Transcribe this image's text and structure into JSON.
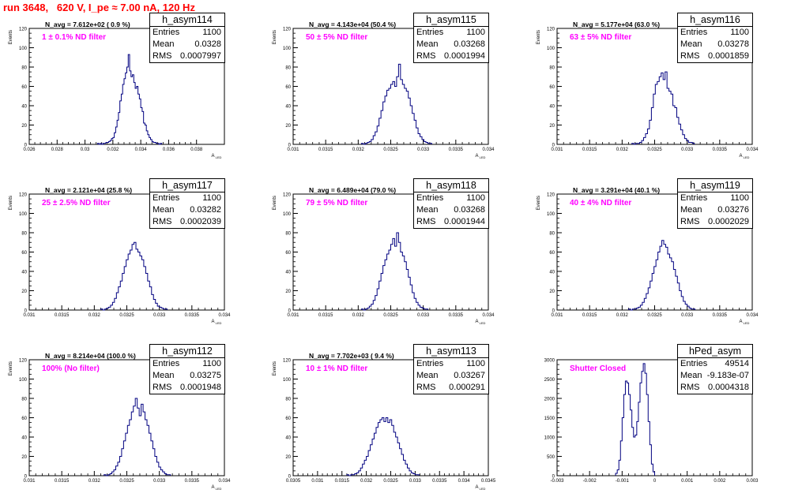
{
  "page": {
    "title": "run 3648,   620 V, I_pe ≈ 7.00 nA, 120 Hz"
  },
  "style": {
    "line_color": "#000080",
    "title_color": "#ff0000",
    "filter_color": "#ff00ff"
  },
  "chart_data": [
    {
      "type": "bar",
      "name": "h_asym114",
      "navg": "N_avg = 7.612e+02 ( 0.9 %)",
      "filter": "1 ± 0.1% ND filter",
      "stats": {
        "entries_label": "Entries",
        "entries": "1100",
        "mean_label": "Mean",
        "mean": "0.0328",
        "rms_label": "RMS",
        "rms": "0.0007997"
      },
      "ylabel": "Events",
      "xlabel": "A_LED",
      "xlim": [
        0.026,
        0.04
      ],
      "ylim": [
        0,
        120
      ],
      "xticks": [
        {
          "v": 0.026,
          "l": "0.026"
        },
        {
          "v": 0.028,
          "l": "0.028"
        },
        {
          "v": 0.03,
          "l": "0.03"
        },
        {
          "v": 0.032,
          "l": "0.032"
        },
        {
          "v": 0.034,
          "l": "0.034"
        },
        {
          "v": 0.036,
          "l": "0.036"
        },
        {
          "v": 0.038,
          "l": "0.038"
        }
      ],
      "yticks": [
        {
          "v": 0,
          "l": "0"
        },
        {
          "v": 20,
          "l": "20"
        },
        {
          "v": 40,
          "l": "40"
        },
        {
          "v": 60,
          "l": "60"
        },
        {
          "v": 80,
          "l": "80"
        },
        {
          "v": 100,
          "l": "100"
        },
        {
          "v": 120,
          "l": "120"
        }
      ],
      "bins": {
        "x0": 0.0309,
        "w": 0.0001,
        "counts": [
          1,
          0,
          1,
          0,
          1,
          1,
          2,
          2,
          3,
          4,
          6,
          7,
          12,
          18,
          25,
          33,
          45,
          52,
          62,
          68,
          74,
          80,
          93,
          76,
          70,
          72,
          64,
          58,
          60,
          52,
          47,
          38,
          34,
          22,
          20,
          14,
          10,
          7,
          5,
          3,
          2,
          2,
          1,
          1,
          0,
          1
        ]
      }
    },
    {
      "type": "bar",
      "name": "h_asym115",
      "navg": "N_avg = 4.143e+04 (50.4 %)",
      "filter": "50 ± 5% ND filter",
      "stats": {
        "entries_label": "Entries",
        "entries": "1100",
        "mean_label": "Mean",
        "mean": "0.03268",
        "rms_label": "RMS",
        "rms": "0.0001994"
      },
      "ylabel": "Events",
      "xlabel": "A_LED",
      "xlim": [
        0.031,
        0.034
      ],
      "ylim": [
        0,
        120
      ],
      "xticks": [
        {
          "v": 0.031,
          "l": "0.031"
        },
        {
          "v": 0.0315,
          "l": "0.0315"
        },
        {
          "v": 0.032,
          "l": "0.032"
        },
        {
          "v": 0.0325,
          "l": "0.0325"
        },
        {
          "v": 0.033,
          "l": "0.033"
        },
        {
          "v": 0.0335,
          "l": "0.0335"
        },
        {
          "v": 0.034,
          "l": "0.034"
        }
      ],
      "yticks": [
        {
          "v": 0,
          "l": "0"
        },
        {
          "v": 20,
          "l": "20"
        },
        {
          "v": 40,
          "l": "40"
        },
        {
          "v": 60,
          "l": "60"
        },
        {
          "v": 80,
          "l": "80"
        },
        {
          "v": 100,
          "l": "100"
        },
        {
          "v": 120,
          "l": "120"
        }
      ],
      "bins": {
        "x0": 0.03205,
        "w": 3e-05,
        "counts": [
          1,
          0,
          1,
          2,
          3,
          5,
          9,
          13,
          19,
          27,
          35,
          44,
          50,
          56,
          58,
          62,
          65,
          60,
          70,
          83,
          67,
          62,
          58,
          55,
          48,
          40,
          32,
          25,
          17,
          11,
          8,
          5,
          3,
          2,
          1,
          1
        ]
      }
    },
    {
      "type": "bar",
      "name": "h_asym116",
      "navg": "N_avg = 5.177e+04 (63.0 %)",
      "filter": "63 ± 5% ND filter",
      "stats": {
        "entries_label": "Entries",
        "entries": "1100",
        "mean_label": "Mean",
        "mean": "0.03278",
        "rms_label": "RMS",
        "rms": "0.0001859"
      },
      "ylabel": "Events",
      "xlabel": "A_LED",
      "xlim": [
        0.031,
        0.034
      ],
      "ylim": [
        0,
        120
      ],
      "xticks": [
        {
          "v": 0.031,
          "l": "0.031"
        },
        {
          "v": 0.0315,
          "l": "0.0315"
        },
        {
          "v": 0.032,
          "l": "0.032"
        },
        {
          "v": 0.0325,
          "l": "0.0325"
        },
        {
          "v": 0.033,
          "l": "0.033"
        },
        {
          "v": 0.0335,
          "l": "0.0335"
        },
        {
          "v": 0.034,
          "l": "0.034"
        }
      ],
      "yticks": [
        {
          "v": 0,
          "l": "0"
        },
        {
          "v": 20,
          "l": "20"
        },
        {
          "v": 40,
          "l": "40"
        },
        {
          "v": 60,
          "l": "60"
        },
        {
          "v": 80,
          "l": "80"
        },
        {
          "v": 100,
          "l": "100"
        },
        {
          "v": 120,
          "l": "120"
        }
      ],
      "bins": {
        "x0": 0.03215,
        "w": 3e-05,
        "counts": [
          1,
          0,
          1,
          1,
          2,
          4,
          7,
          11,
          16,
          25,
          38,
          52,
          62,
          65,
          70,
          74,
          67,
          75,
          58,
          55,
          52,
          40,
          38,
          28,
          21,
          15,
          10,
          6,
          4,
          2,
          2,
          1
        ]
      }
    },
    {
      "type": "bar",
      "name": "h_asym117",
      "navg": "N_avg = 2.121e+04 (25.8 %)",
      "filter": "25 ± 2.5% ND filter",
      "stats": {
        "entries_label": "Entries",
        "entries": "1100",
        "mean_label": "Mean",
        "mean": "0.03282",
        "rms_label": "RMS",
        "rms": "0.0002039"
      },
      "ylabel": "Events",
      "xlabel": "A_LED",
      "xlim": [
        0.031,
        0.034
      ],
      "ylim": [
        0,
        120
      ],
      "xticks": [
        {
          "v": 0.031,
          "l": "0.031"
        },
        {
          "v": 0.0315,
          "l": "0.0315"
        },
        {
          "v": 0.032,
          "l": "0.032"
        },
        {
          "v": 0.0325,
          "l": "0.0325"
        },
        {
          "v": 0.033,
          "l": "0.033"
        },
        {
          "v": 0.0335,
          "l": "0.0335"
        },
        {
          "v": 0.034,
          "l": "0.034"
        }
      ],
      "yticks": [
        {
          "v": 0,
          "l": "0"
        },
        {
          "v": 20,
          "l": "20"
        },
        {
          "v": 40,
          "l": "40"
        },
        {
          "v": 60,
          "l": "60"
        },
        {
          "v": 80,
          "l": "80"
        },
        {
          "v": 100,
          "l": "100"
        },
        {
          "v": 120,
          "l": "120"
        }
      ],
      "bins": {
        "x0": 0.0321,
        "w": 3e-05,
        "counts": [
          1,
          0,
          1,
          2,
          3,
          5,
          8,
          12,
          18,
          24,
          30,
          38,
          45,
          52,
          58,
          62,
          68,
          70,
          63,
          60,
          56,
          52,
          45,
          38,
          30,
          24,
          16,
          11,
          7,
          4,
          3,
          2,
          1,
          1
        ]
      }
    },
    {
      "type": "bar",
      "name": "h_asym118",
      "navg": "N_avg = 6.489e+04 (79.0 %)",
      "filter": "79 ± 5% ND filter",
      "stats": {
        "entries_label": "Entries",
        "entries": "1100",
        "mean_label": "Mean",
        "mean": "0.03268",
        "rms_label": "RMS",
        "rms": "0.0001944"
      },
      "ylabel": "Events",
      "xlabel": "A_LED",
      "xlim": [
        0.031,
        0.034
      ],
      "ylim": [
        0,
        120
      ],
      "xticks": [
        {
          "v": 0.031,
          "l": "0.031"
        },
        {
          "v": 0.0315,
          "l": "0.0315"
        },
        {
          "v": 0.032,
          "l": "0.032"
        },
        {
          "v": 0.0325,
          "l": "0.0325"
        },
        {
          "v": 0.033,
          "l": "0.033"
        },
        {
          "v": 0.0335,
          "l": "0.0335"
        },
        {
          "v": 0.034,
          "l": "0.034"
        }
      ],
      "yticks": [
        {
          "v": 0,
          "l": "0"
        },
        {
          "v": 20,
          "l": "20"
        },
        {
          "v": 40,
          "l": "40"
        },
        {
          "v": 60,
          "l": "60"
        },
        {
          "v": 80,
          "l": "80"
        },
        {
          "v": 100,
          "l": "100"
        },
        {
          "v": 120,
          "l": "120"
        }
      ],
      "bins": {
        "x0": 0.03205,
        "w": 3e-05,
        "counts": [
          1,
          0,
          1,
          2,
          4,
          6,
          10,
          15,
          22,
          30,
          38,
          46,
          52,
          58,
          62,
          68,
          74,
          66,
          80,
          70,
          60,
          56,
          50,
          42,
          34,
          26,
          18,
          12,
          8,
          5,
          3,
          2,
          1,
          1
        ]
      }
    },
    {
      "type": "bar",
      "name": "h_asym119",
      "navg": "N_avg = 3.291e+04 (40.1 %)",
      "filter": "40 ± 4% ND filter",
      "stats": {
        "entries_label": "Entries",
        "entries": "1100",
        "mean_label": "Mean",
        "mean": "0.03276",
        "rms_label": "RMS",
        "rms": "0.0002029"
      },
      "ylabel": "Events",
      "xlabel": "A_LED",
      "xlim": [
        0.031,
        0.034
      ],
      "ylim": [
        0,
        120
      ],
      "xticks": [
        {
          "v": 0.031,
          "l": "0.031"
        },
        {
          "v": 0.0315,
          "l": "0.0315"
        },
        {
          "v": 0.032,
          "l": "0.032"
        },
        {
          "v": 0.0325,
          "l": "0.0325"
        },
        {
          "v": 0.033,
          "l": "0.033"
        },
        {
          "v": 0.0335,
          "l": "0.0335"
        },
        {
          "v": 0.034,
          "l": "0.034"
        }
      ],
      "yticks": [
        {
          "v": 0,
          "l": "0"
        },
        {
          "v": 20,
          "l": "20"
        },
        {
          "v": 40,
          "l": "40"
        },
        {
          "v": 60,
          "l": "60"
        },
        {
          "v": 80,
          "l": "80"
        },
        {
          "v": 100,
          "l": "100"
        },
        {
          "v": 120,
          "l": "120"
        }
      ],
      "bins": {
        "x0": 0.0321,
        "w": 3e-05,
        "counts": [
          1,
          0,
          1,
          1,
          2,
          3,
          5,
          8,
          12,
          17,
          23,
          30,
          38,
          45,
          52,
          60,
          66,
          72,
          68,
          65,
          58,
          54,
          50,
          42,
          35,
          28,
          20,
          14,
          9,
          6,
          4,
          2,
          1,
          1
        ]
      }
    },
    {
      "type": "bar",
      "name": "h_asym112",
      "navg": "N_avg = 8.214e+04 (100.0 %)",
      "filter": "100% (No filter)",
      "stats": {
        "entries_label": "Entries",
        "entries": "1100",
        "mean_label": "Mean",
        "mean": "0.03275",
        "rms_label": "RMS",
        "rms": "0.0001948"
      },
      "ylabel": "Events",
      "xlabel": "A_LED",
      "xlim": [
        0.031,
        0.034
      ],
      "ylim": [
        0,
        120
      ],
      "xticks": [
        {
          "v": 0.031,
          "l": "0.031"
        },
        {
          "v": 0.0315,
          "l": "0.0315"
        },
        {
          "v": 0.032,
          "l": "0.032"
        },
        {
          "v": 0.0325,
          "l": "0.0325"
        },
        {
          "v": 0.033,
          "l": "0.033"
        },
        {
          "v": 0.0335,
          "l": "0.0335"
        },
        {
          "v": 0.034,
          "l": "0.034"
        }
      ],
      "yticks": [
        {
          "v": 0,
          "l": "0"
        },
        {
          "v": 20,
          "l": "20"
        },
        {
          "v": 40,
          "l": "40"
        },
        {
          "v": 60,
          "l": "60"
        },
        {
          "v": 80,
          "l": "80"
        },
        {
          "v": 100,
          "l": "100"
        },
        {
          "v": 120,
          "l": "120"
        }
      ],
      "bins": {
        "x0": 0.03215,
        "w": 3e-05,
        "counts": [
          1,
          0,
          1,
          2,
          4,
          6,
          10,
          14,
          20,
          28,
          36,
          44,
          52,
          58,
          66,
          72,
          80,
          70,
          62,
          74,
          66,
          58,
          52,
          44,
          36,
          28,
          20,
          14,
          9,
          6,
          4,
          2,
          1,
          1
        ]
      }
    },
    {
      "type": "bar",
      "name": "h_asym113",
      "navg": "N_avg = 7.702e+03 ( 9.4 %)",
      "filter": "10 ± 1% ND filter",
      "stats": {
        "entries_label": "Entries",
        "entries": "1100",
        "mean_label": "Mean",
        "mean": "0.03267",
        "rms_label": "RMS",
        "rms": "0.000291"
      },
      "ylabel": "Events",
      "xlabel": "A_LED",
      "xlim": [
        0.0305,
        0.0345
      ],
      "ylim": [
        0,
        120
      ],
      "xticks": [
        {
          "v": 0.0305,
          "l": "0.0305"
        },
        {
          "v": 0.031,
          "l": "0.031"
        },
        {
          "v": 0.0315,
          "l": "0.0315"
        },
        {
          "v": 0.032,
          "l": "0.032"
        },
        {
          "v": 0.0325,
          "l": "0.0325"
        },
        {
          "v": 0.033,
          "l": "0.033"
        },
        {
          "v": 0.0335,
          "l": "0.0335"
        },
        {
          "v": 0.034,
          "l": "0.034"
        },
        {
          "v": 0.0345,
          "l": "0.0345"
        }
      ],
      "yticks": [
        {
          "v": 0,
          "l": "0"
        },
        {
          "v": 20,
          "l": "20"
        },
        {
          "v": 40,
          "l": "40"
        },
        {
          "v": 60,
          "l": "60"
        },
        {
          "v": 80,
          "l": "80"
        },
        {
          "v": 100,
          "l": "100"
        },
        {
          "v": 120,
          "l": "120"
        }
      ],
      "bins": {
        "x0": 0.0316,
        "w": 4e-05,
        "counts": [
          1,
          0,
          1,
          1,
          2,
          3,
          5,
          8,
          12,
          16,
          20,
          26,
          32,
          38,
          44,
          50,
          55,
          58,
          60,
          56,
          60,
          55,
          58,
          52,
          45,
          40,
          34,
          28,
          22,
          16,
          12,
          8,
          5,
          3,
          2,
          1,
          1
        ]
      }
    },
    {
      "type": "bar",
      "name": "hPed_asym",
      "navg": "",
      "filter": "Shutter Closed",
      "stats": {
        "entries_label": "Entries",
        "entries": "49514",
        "mean_label": "Mean",
        "mean": "-9.183e-07",
        "rms_label": "RMS",
        "rms": "0.0004318"
      },
      "ylabel": "",
      "xlabel": "",
      "xlim": [
        -0.003,
        0.003
      ],
      "ylim": [
        0,
        3000
      ],
      "xticks": [
        {
          "v": -0.003,
          "l": "-0.003"
        },
        {
          "v": -0.002,
          "l": "-0.002"
        },
        {
          "v": -0.001,
          "l": "-0.001"
        },
        {
          "v": 0,
          "l": "0"
        },
        {
          "v": 0.001,
          "l": "0.001"
        },
        {
          "v": 0.002,
          "l": "0.002"
        },
        {
          "v": 0.003,
          "l": "0.003"
        }
      ],
      "yticks": [
        {
          "v": 0,
          "l": "0"
        },
        {
          "v": 500,
          "l": "500"
        },
        {
          "v": 1000,
          "l": "1000"
        },
        {
          "v": 1500,
          "l": "1500"
        },
        {
          "v": 2000,
          "l": "2000"
        },
        {
          "v": 2500,
          "l": "2500"
        },
        {
          "v": 3000,
          "l": "3000"
        }
      ],
      "bins": {
        "x0": -0.0012,
        "w": 5e-05,
        "counts": [
          60,
          150,
          400,
          900,
          1500,
          2100,
          2450,
          2400,
          2100,
          1700,
          1250,
          1000,
          1050,
          1400,
          1900,
          2400,
          2700,
          2900,
          2650,
          2100,
          1400,
          800,
          300,
          100
        ]
      }
    }
  ]
}
